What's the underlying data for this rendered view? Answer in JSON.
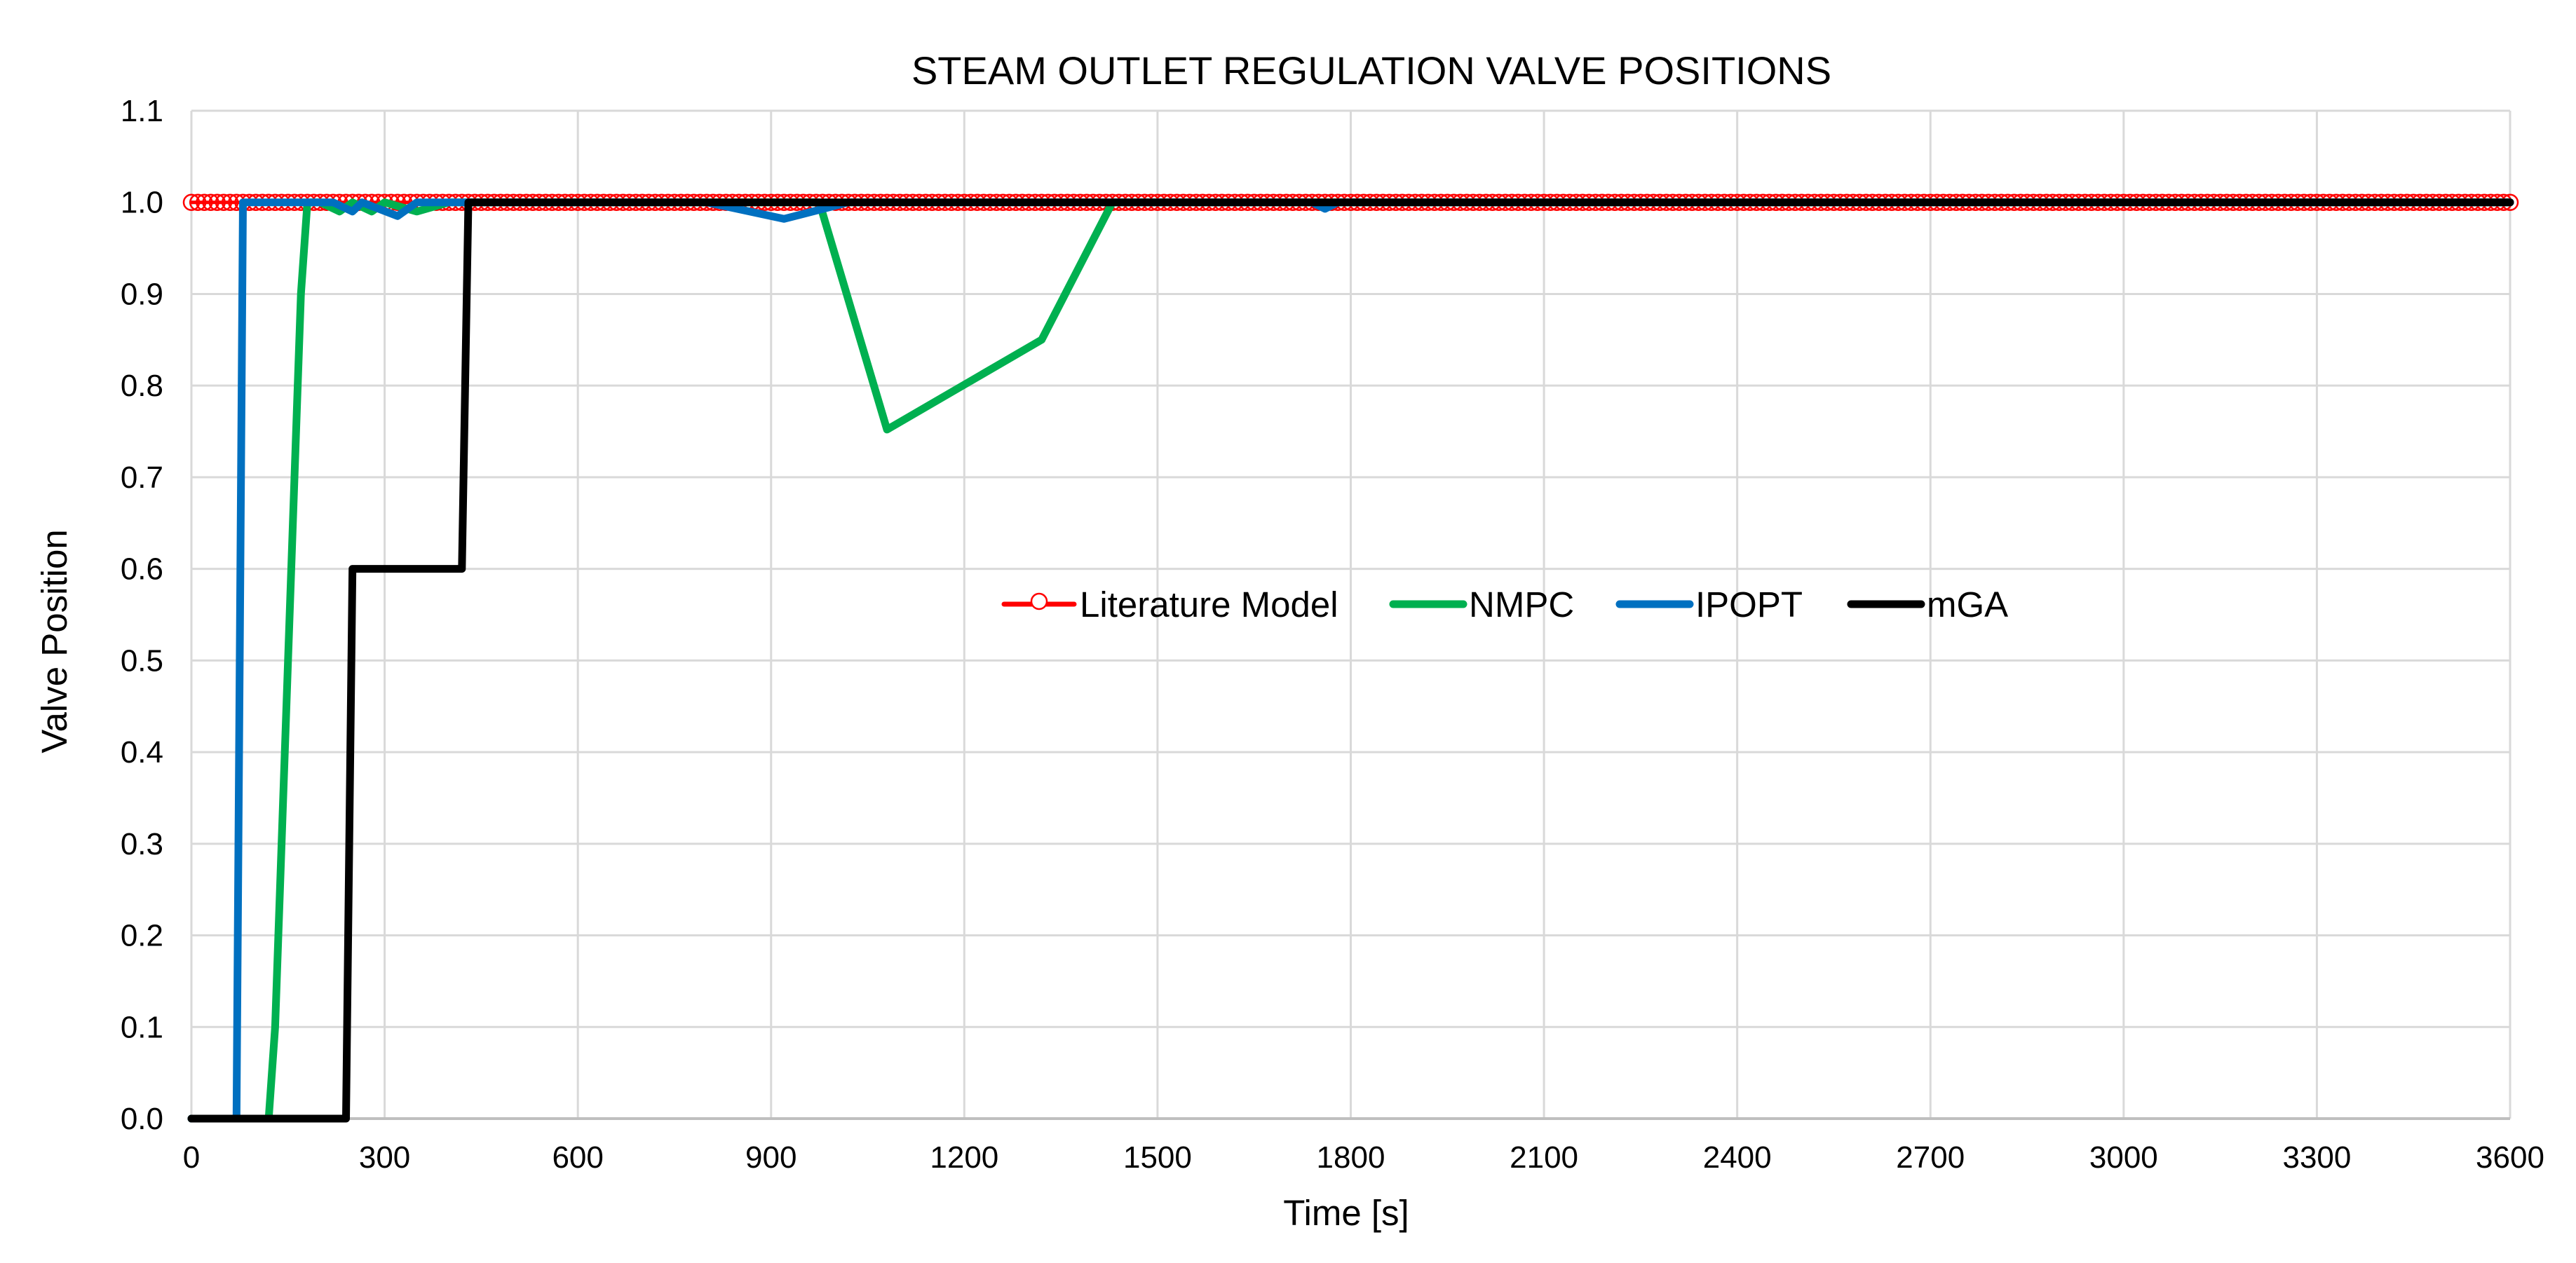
{
  "chart_data": {
    "type": "line",
    "title": "STEAM OUTLET REGULATION VALVE POSITIONS",
    "xlabel": "Time [s]",
    "ylabel": "Valve Position",
    "xlim": [
      0,
      3600
    ],
    "ylim": [
      0,
      1.1
    ],
    "xticks": [
      0,
      300,
      600,
      900,
      1200,
      1500,
      1800,
      2100,
      2400,
      2700,
      3000,
      3300,
      3600
    ],
    "yticks": [
      0.0,
      0.1,
      0.2,
      0.3,
      0.4,
      0.5,
      0.6,
      0.7,
      0.8,
      0.9,
      1.0,
      1.1
    ],
    "xtick_labels": [
      "0",
      "300",
      "600",
      "900",
      "1200",
      "1500",
      "1800",
      "2100",
      "2400",
      "2700",
      "3000",
      "3300",
      "3600"
    ],
    "ytick_labels": [
      "0.0",
      "0.1",
      "0.2",
      "0.3",
      "0.4",
      "0.5",
      "0.6",
      "0.7",
      "0.8",
      "0.9",
      "1.0",
      "1.1"
    ],
    "grid": true,
    "legend_position": "center",
    "series": [
      {
        "name": "Literature Model",
        "color": "#ff0000",
        "marker": "circle-open",
        "marker_step": 10,
        "x": [
          0,
          3600
        ],
        "y": [
          1.0,
          1.0
        ]
      },
      {
        "name": "NMPC",
        "color": "#00b050",
        "x": [
          0,
          120,
          130,
          150,
          170,
          180,
          190,
          200,
          230,
          250,
          280,
          300,
          350,
          400,
          600,
          975,
          1080,
          1320,
          1430,
          3600
        ],
        "y": [
          0.0,
          0.0,
          0.1,
          0.5,
          0.9,
          1.0,
          1.0,
          1.0,
          0.99,
          1.0,
          0.99,
          1.0,
          0.99,
          1.0,
          1.0,
          1.0,
          0.752,
          0.85,
          1.0,
          1.0
        ]
      },
      {
        "name": "IPOPT",
        "color": "#0070c0",
        "x": [
          0,
          70,
          80,
          220,
          250,
          265,
          320,
          350,
          400,
          800,
          920,
          1020,
          1740,
          1760,
          1780,
          3600
        ],
        "y": [
          0.0,
          0.0,
          1.0,
          1.0,
          0.99,
          1.0,
          0.985,
          1.0,
          1.0,
          1.0,
          0.982,
          1.0,
          1.0,
          0.993,
          1.0,
          1.0
        ]
      },
      {
        "name": "mGA",
        "color": "#000000",
        "x": [
          0,
          240,
          250,
          420,
          430,
          3600
        ],
        "y": [
          0.0,
          0.0,
          0.6,
          0.6,
          1.0,
          1.0
        ]
      }
    ]
  }
}
